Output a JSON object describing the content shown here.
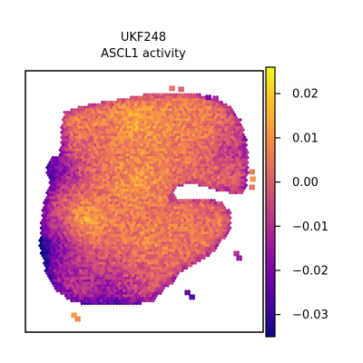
{
  "chart_data": {
    "type": "heatmap",
    "title": "UKF248",
    "subtitle": "ASCL1 activity",
    "xlabel": "",
    "ylabel": "",
    "colormap": "plasma",
    "colorbar": {
      "range": [
        -0.035,
        0.026
      ],
      "ticks": [
        0.02,
        0.01,
        0.0,
        -0.01,
        -0.02,
        -0.03
      ],
      "tick_labels": [
        "0.02",
        "0.01",
        "0.00",
        "−0.01",
        "−0.02",
        "−0.03"
      ]
    },
    "grid": false,
    "layout_note": "spatial spot map, no axis ticks",
    "regional_values": [
      {
        "region": "upper lobe left",
        "value": 0.006
      },
      {
        "region": "upper lobe center",
        "value": 0.014
      },
      {
        "region": "upper lobe right",
        "value": 0.008
      },
      {
        "region": "upper right edge",
        "value": -0.008
      },
      {
        "region": "middle left edge",
        "value": -0.022
      },
      {
        "region": "middle center",
        "value": 0.012
      },
      {
        "region": "lower lobe left",
        "value": 0.016
      },
      {
        "region": "lower lobe center",
        "value": 0.008
      },
      {
        "region": "lower left edge",
        "value": -0.03
      },
      {
        "region": "bottom edge",
        "value": -0.018
      },
      {
        "region": "right arm",
        "value": 0.004
      }
    ]
  }
}
